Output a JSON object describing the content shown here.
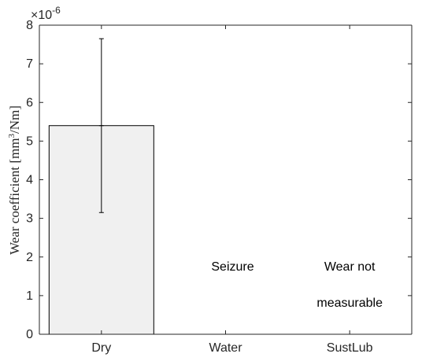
{
  "chart_data": {
    "type": "bar",
    "categories": [
      "Dry",
      "Water",
      "SustLub"
    ],
    "values": [
      5.4,
      0,
      0
    ],
    "errors": [
      {
        "low": 3.15,
        "high": 7.65
      },
      null,
      null
    ],
    "ylim": [
      0,
      8
    ],
    "yticks": [
      "0",
      "1",
      "2",
      "3",
      "4",
      "5",
      "6",
      "7",
      "8"
    ],
    "yscale_multiplier": "×10-6",
    "ylabel": "Wear coefficient [mm3/Nm]",
    "xlabel": "",
    "title": "",
    "bar_color": "#f0f0f0",
    "bar_edge_color": "#000000",
    "annotations": [
      {
        "category": "Water",
        "lines": [
          "Seizure"
        ]
      },
      {
        "category": "SustLub",
        "lines": [
          "Wear not",
          "measurable"
        ]
      }
    ],
    "grid": false
  }
}
